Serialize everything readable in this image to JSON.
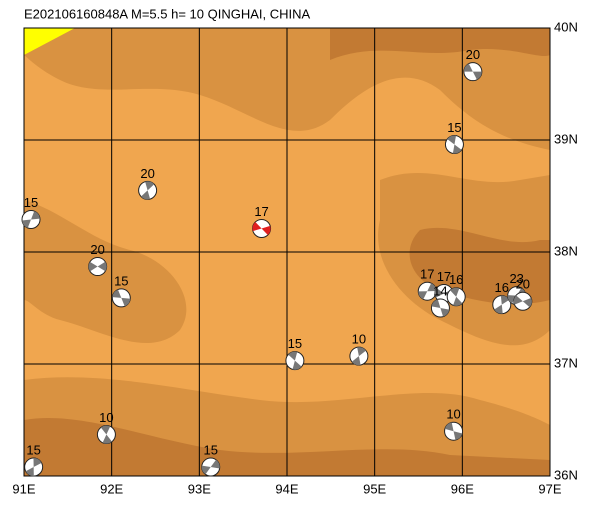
{
  "title": "E202106160848A M=5.5 h= 10 QINGHAI, CHINA",
  "map": {
    "xlim": [
      91,
      97
    ],
    "ylim": [
      36,
      40
    ],
    "xticks": [
      {
        "value": 91,
        "label": "91E"
      },
      {
        "value": 92,
        "label": "92E"
      },
      {
        "value": 93,
        "label": "93E"
      },
      {
        "value": 94,
        "label": "94E"
      },
      {
        "value": 95,
        "label": "95E"
      },
      {
        "value": 96,
        "label": "96E"
      },
      {
        "value": 97,
        "label": "97E"
      }
    ],
    "yticks": [
      {
        "value": 36,
        "label": "36N"
      },
      {
        "value": 37,
        "label": "37N"
      },
      {
        "value": 38,
        "label": "38N"
      },
      {
        "value": 39,
        "label": "39N"
      },
      {
        "value": 40,
        "label": "40N"
      }
    ],
    "grid": true,
    "events": [
      {
        "lon": 96.12,
        "lat": 39.61,
        "depth": 20,
        "color": "#777777"
      },
      {
        "lon": 95.91,
        "lat": 38.96,
        "depth": 15,
        "color": "#777777"
      },
      {
        "lon": 92.41,
        "lat": 38.55,
        "depth": 20,
        "color": "#777777"
      },
      {
        "lon": 91.08,
        "lat": 38.29,
        "depth": 15,
        "color": "#777777"
      },
      {
        "lon": 91.84,
        "lat": 37.87,
        "depth": 20,
        "color": "#777777"
      },
      {
        "lon": 92.11,
        "lat": 37.59,
        "depth": 15,
        "color": "#777777"
      },
      {
        "lon": 94.09,
        "lat": 37.03,
        "depth": 15,
        "color": "#777777"
      },
      {
        "lon": 94.82,
        "lat": 37.07,
        "depth": 10,
        "color": "#777777"
      },
      {
        "lon": 95.6,
        "lat": 37.65,
        "depth": 17,
        "color": "#777777"
      },
      {
        "lon": 95.79,
        "lat": 37.63,
        "depth": 17,
        "color": "#777777"
      },
      {
        "lon": 95.75,
        "lat": 37.5,
        "depth": 14,
        "color": "#777777"
      },
      {
        "lon": 95.93,
        "lat": 37.6,
        "depth": 16,
        "color": "#777777"
      },
      {
        "lon": 96.45,
        "lat": 37.53,
        "depth": 16,
        "color": "#777777"
      },
      {
        "lon": 96.62,
        "lat": 37.61,
        "depth": 23,
        "color": "#777777"
      },
      {
        "lon": 96.69,
        "lat": 37.56,
        "depth": 20,
        "color": "#777777"
      },
      {
        "lon": 95.9,
        "lat": 36.4,
        "depth": 10,
        "color": "#777777"
      },
      {
        "lon": 91.94,
        "lat": 36.37,
        "depth": 10,
        "color": "#777777"
      },
      {
        "lon": 91.11,
        "lat": 36.08,
        "depth": 15,
        "color": "#777777"
      },
      {
        "lon": 93.13,
        "lat": 36.08,
        "depth": 15,
        "color": "#777777"
      },
      {
        "lon": 93.71,
        "lat": 38.21,
        "depth": 17,
        "color": "#e02020"
      }
    ]
  }
}
